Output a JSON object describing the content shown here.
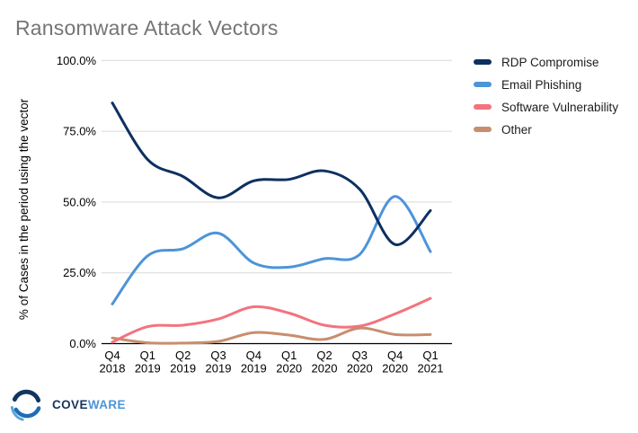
{
  "page": {
    "title": "Ransomware Attack Vectors",
    "title_color": "#757575",
    "background_color": "#ffffff"
  },
  "chart_data": {
    "type": "line",
    "smooth": true,
    "grid": true,
    "legend_position": "right",
    "title": "Ransomware Attack Vectors",
    "xlabel": "",
    "ylabel": "% of Cases in the period using the vector",
    "ylim": [
      0,
      100
    ],
    "yticks": [
      0,
      25,
      50,
      75,
      100
    ],
    "ytick_labels": [
      "0.0%",
      "25.0%",
      "50.0%",
      "75.0%",
      "100.0%"
    ],
    "gridline_color": "#d9d9d9",
    "axis_line_color": "#000000",
    "categories": [
      [
        "Q4",
        "2018"
      ],
      [
        "Q1",
        "2019"
      ],
      [
        "Q2",
        "2019"
      ],
      [
        "Q3",
        "2019"
      ],
      [
        "Q4",
        "2019"
      ],
      [
        "Q1",
        "2020"
      ],
      [
        "Q2",
        "2020"
      ],
      [
        "Q3",
        "2020"
      ],
      [
        "Q4",
        "2020"
      ],
      [
        "Q1",
        "2021"
      ]
    ],
    "series": [
      {
        "name": "RDP Compromise",
        "color": "#0d3060",
        "values": [
          85,
          65,
          59,
          51.5,
          57.5,
          58,
          61,
          54.5,
          35,
          47
        ]
      },
      {
        "name": "Email Phishing",
        "color": "#4d94d9",
        "values": [
          14,
          31,
          33.5,
          39,
          28.5,
          27,
          30,
          31.5,
          52,
          32.5
        ]
      },
      {
        "name": "Software Vulnerability",
        "color": "#f3737e",
        "values": [
          0.5,
          6,
          6.5,
          8.7,
          13,
          10.8,
          6.5,
          6.2,
          10.5,
          16
        ]
      },
      {
        "name": "Other",
        "color": "#c78e6d",
        "values": [
          2,
          0.3,
          0.2,
          0.8,
          3.9,
          3,
          1.5,
          5.5,
          3.2,
          3.2
        ]
      }
    ]
  },
  "logo": {
    "text_primary": "COVE",
    "text_secondary": "WARE",
    "primary_color": "#17365d",
    "secondary_color": "#4d94d9"
  }
}
